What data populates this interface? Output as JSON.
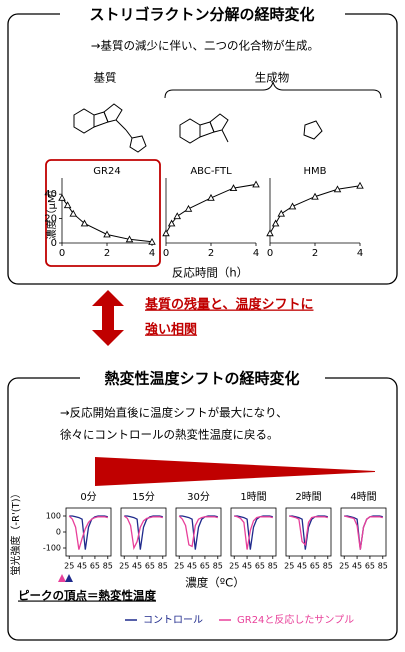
{
  "top_panel": {
    "title": "ストリゴラクトン分解の経時変化",
    "subtitle": "→基質の減少に伴い、二つの化合物が生成。",
    "substrate_label": "基質",
    "products_label": "生成物",
    "x_label": "反応時間（h）",
    "y_label": "濃度（μM）"
  },
  "arrow_text": [
    "基質の残量と、温度シフトに",
    "強い相関"
  ],
  "bottom_panel": {
    "title": "熱変性温度シフトの経時変化",
    "lines": [
      "→反応開始直後に温度シフトが最大になり、",
      "徐々にコントロールの熱変性温度に戻る。"
    ],
    "y_label": "蛍光強度（-R'(T)）",
    "x_label": "濃度（ºC）",
    "peak_note": "ピークの頂点＝熱変性温度",
    "legend": [
      {
        "name": "コントロール",
        "color": "#1f2a8c"
      },
      {
        "name": "GR24と反応したサンプル",
        "color": "#e8409a"
      }
    ]
  },
  "chart_data": [
    {
      "type": "line",
      "title": "GR24",
      "x": [
        0,
        0.25,
        0.5,
        1,
        2,
        3,
        4
      ],
      "values": [
        37,
        31,
        24,
        16,
        7,
        3,
        1
      ],
      "color": "#000000",
      "markers": true,
      "xlim": [
        0,
        4
      ],
      "ylim": [
        0,
        50
      ],
      "xticks": [
        0,
        2,
        4
      ],
      "yticks": [
        0,
        20,
        40
      ]
    },
    {
      "type": "line",
      "title": "ABC-FTL",
      "x": [
        0,
        0.25,
        0.5,
        1,
        2,
        3,
        4
      ],
      "values": [
        8,
        16,
        22,
        28,
        37,
        45,
        48
      ],
      "color": "#000000",
      "markers": true,
      "xlim": [
        0,
        4
      ],
      "ylim": [
        0,
        50
      ],
      "xticks": [
        0,
        2,
        4
      ]
    },
    {
      "type": "line",
      "title": "HMB",
      "x": [
        0,
        0.25,
        0.5,
        1,
        2,
        3,
        4
      ],
      "values": [
        8,
        16,
        24,
        30,
        38,
        44,
        47
      ],
      "color": "#000000",
      "markers": true,
      "xlim": [
        0,
        4
      ],
      "ylim": [
        0,
        50
      ],
      "xticks": [
        0,
        2,
        4
      ]
    },
    {
      "type": "line",
      "title": "0分",
      "x": [
        25,
        30,
        35,
        40,
        45,
        50,
        55,
        60,
        65,
        70,
        75,
        80,
        85
      ],
      "xlim": [
        20,
        90
      ],
      "ylim": [
        -150,
        150
      ],
      "xticks": [
        25,
        45,
        65,
        85
      ],
      "yticks": [
        100,
        0,
        -100
      ],
      "series": [
        {
          "values": [
            100,
            100,
            95,
            90,
            80,
            -110,
            30,
            80,
            95,
            100,
            100,
            100,
            95
          ]
        },
        {
          "values": [
            100,
            80,
            30,
            -110,
            -40,
            20,
            60,
            80,
            90,
            95,
            95,
            95,
            90
          ]
        }
      ]
    },
    {
      "type": "line",
      "title": "15分",
      "x": [
        25,
        30,
        35,
        40,
        45,
        50,
        55,
        60,
        65,
        70,
        75,
        80,
        85
      ],
      "xlim": [
        20,
        90
      ],
      "ylim": [
        -150,
        150
      ],
      "xticks": [
        25,
        45,
        65,
        85
      ],
      "series": [
        {
          "values": [
            100,
            100,
            95,
            90,
            80,
            -110,
            30,
            80,
            95,
            100,
            100,
            100,
            95
          ]
        },
        {
          "values": [
            100,
            85,
            40,
            -100,
            -60,
            30,
            70,
            85,
            90,
            95,
            95,
            95,
            90
          ]
        }
      ]
    },
    {
      "type": "line",
      "title": "30分",
      "x": [
        25,
        30,
        35,
        40,
        45,
        50,
        55,
        60,
        65,
        70,
        75,
        80,
        85
      ],
      "xlim": [
        20,
        90
      ],
      "ylim": [
        -150,
        150
      ],
      "xticks": [
        25,
        45,
        65,
        85
      ],
      "series": [
        {
          "values": [
            100,
            100,
            95,
            90,
            80,
            -110,
            30,
            80,
            95,
            100,
            100,
            100,
            95
          ]
        },
        {
          "values": [
            100,
            80,
            40,
            -80,
            -90,
            40,
            80,
            90,
            95,
            95,
            95,
            95,
            90
          ]
        }
      ]
    },
    {
      "type": "line",
      "title": "1時間",
      "x": [
        25,
        30,
        35,
        40,
        45,
        50,
        55,
        60,
        65,
        70,
        75,
        80,
        85
      ],
      "xlim": [
        20,
        90
      ],
      "ylim": [
        -150,
        150
      ],
      "xticks": [
        25,
        45,
        65,
        85
      ],
      "series": [
        {
          "values": [
            100,
            100,
            95,
            90,
            80,
            -110,
            30,
            80,
            95,
            100,
            100,
            100,
            95
          ]
        },
        {
          "values": [
            100,
            95,
            85,
            60,
            -110,
            10,
            70,
            90,
            95,
            95,
            95,
            95,
            90
          ]
        }
      ]
    },
    {
      "type": "line",
      "title": "2時間",
      "x": [
        25,
        30,
        35,
        40,
        45,
        50,
        55,
        60,
        65,
        70,
        75,
        80,
        85
      ],
      "xlim": [
        20,
        90
      ],
      "ylim": [
        -150,
        150
      ],
      "xticks": [
        25,
        45,
        65,
        85
      ],
      "series": [
        {
          "values": [
            100,
            100,
            95,
            90,
            80,
            -110,
            30,
            80,
            95,
            100,
            100,
            100,
            95
          ]
        },
        {
          "values": [
            100,
            95,
            90,
            80,
            -60,
            -80,
            60,
            90,
            95,
            95,
            95,
            95,
            90
          ]
        }
      ]
    },
    {
      "type": "line",
      "title": "4時間",
      "x": [
        25,
        30,
        35,
        40,
        45,
        50,
        55,
        60,
        65,
        70,
        75,
        80,
        85
      ],
      "xlim": [
        20,
        90
      ],
      "ylim": [
        -150,
        150
      ],
      "xticks": [
        25,
        45,
        65,
        85
      ],
      "series": [
        {
          "values": [
            100,
            100,
            95,
            90,
            80,
            -110,
            30,
            80,
            95,
            100,
            100,
            100,
            95
          ]
        },
        {
          "values": [
            100,
            95,
            90,
            85,
            40,
            -110,
            30,
            80,
            95,
            95,
            95,
            95,
            90
          ]
        }
      ]
    }
  ]
}
